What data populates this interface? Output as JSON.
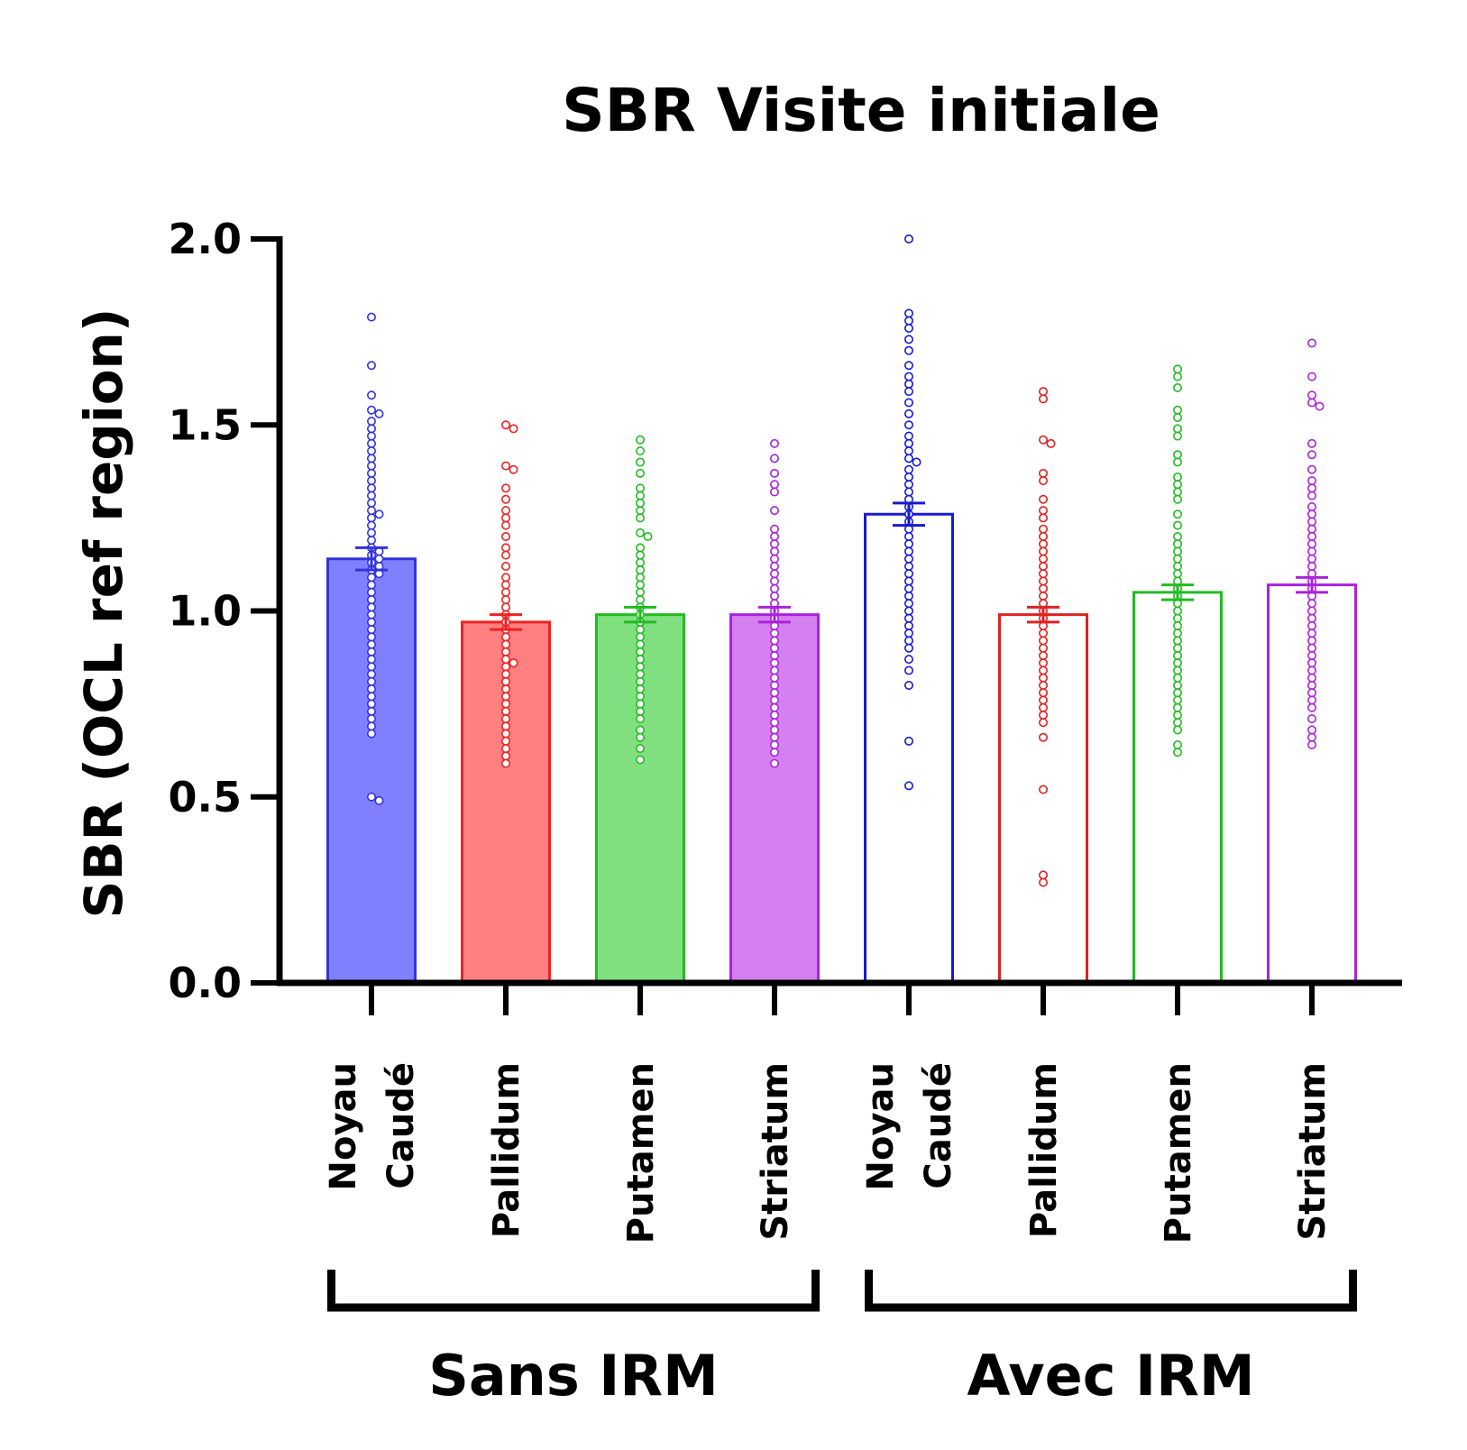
{
  "chart_data": {
    "type": "bar",
    "title": "SBR Visite initiale",
    "ylabel": "SBR (OCL ref region)",
    "ylim": [
      0,
      2
    ],
    "yticks": [
      "0.0",
      "0.5",
      "1.0",
      "1.5",
      "2.0"
    ],
    "categories": [
      {
        "lines": [
          "Noyau",
          "Caudé"
        ],
        "group": "Sans IRM",
        "mean": 1.14,
        "sem": 0.03,
        "color": "#3333dd",
        "fill": "#8080ff",
        "filled": true,
        "points": [
          1.79,
          1.66,
          1.58,
          1.54,
          1.53,
          1.51,
          1.49,
          1.47,
          1.45,
          1.43,
          1.41,
          1.39,
          1.37,
          1.35,
          1.33,
          1.31,
          1.29,
          1.27,
          1.26,
          1.25,
          1.23,
          1.21,
          1.19,
          1.17,
          1.16,
          1.15,
          1.14,
          1.13,
          1.12,
          1.11,
          1.1,
          1.09,
          1.07,
          1.05,
          1.03,
          1.01,
          0.99,
          0.97,
          0.95,
          0.93,
          0.91,
          0.89,
          0.87,
          0.85,
          0.83,
          0.81,
          0.79,
          0.77,
          0.75,
          0.73,
          0.71,
          0.69,
          0.67,
          0.5,
          0.49
        ]
      },
      {
        "lines": [
          "Pallidum"
        ],
        "group": "Sans IRM",
        "mean": 0.97,
        "sem": 0.02,
        "color": "#ee2222",
        "fill": "#ff8080",
        "filled": true,
        "points": [
          1.5,
          1.49,
          1.39,
          1.38,
          1.33,
          1.3,
          1.27,
          1.25,
          1.23,
          1.2,
          1.17,
          1.15,
          1.12,
          1.09,
          1.07,
          1.05,
          1.03,
          1.01,
          0.99,
          0.97,
          0.95,
          0.93,
          0.91,
          0.89,
          0.87,
          0.86,
          0.85,
          0.83,
          0.81,
          0.79,
          0.77,
          0.75,
          0.73,
          0.71,
          0.69,
          0.67,
          0.65,
          0.63,
          0.61,
          0.59
        ]
      },
      {
        "lines": [
          "Putamen"
        ],
        "group": "Sans IRM",
        "mean": 0.99,
        "sem": 0.02,
        "color": "#22bb22",
        "fill": "#80e080",
        "filled": true,
        "points": [
          1.46,
          1.43,
          1.4,
          1.37,
          1.33,
          1.31,
          1.29,
          1.27,
          1.25,
          1.21,
          1.2,
          1.17,
          1.15,
          1.13,
          1.11,
          1.09,
          1.07,
          1.05,
          1.03,
          1.01,
          0.99,
          0.97,
          0.95,
          0.93,
          0.91,
          0.89,
          0.87,
          0.85,
          0.83,
          0.81,
          0.79,
          0.77,
          0.75,
          0.73,
          0.71,
          0.68,
          0.66,
          0.63,
          0.6
        ]
      },
      {
        "lines": [
          "Striatum"
        ],
        "group": "Sans IRM",
        "mean": 0.99,
        "sem": 0.02,
        "color": "#aa22dd",
        "fill": "#d580f0",
        "filled": true,
        "points": [
          1.45,
          1.41,
          1.37,
          1.34,
          1.32,
          1.27,
          1.22,
          1.2,
          1.18,
          1.16,
          1.14,
          1.12,
          1.1,
          1.08,
          1.06,
          1.04,
          1.02,
          1.0,
          0.98,
          0.96,
          0.94,
          0.92,
          0.9,
          0.88,
          0.86,
          0.84,
          0.82,
          0.8,
          0.78,
          0.76,
          0.74,
          0.72,
          0.7,
          0.68,
          0.66,
          0.64,
          0.62,
          0.59
        ]
      },
      {
        "lines": [
          "Noyau",
          "Caudé"
        ],
        "group": "Avec IRM",
        "mean": 1.26,
        "sem": 0.03,
        "color": "#1a1ad0",
        "fill": "#ffffff",
        "filled": false,
        "points": [
          2.0,
          1.8,
          1.78,
          1.76,
          1.73,
          1.7,
          1.66,
          1.63,
          1.61,
          1.59,
          1.56,
          1.53,
          1.5,
          1.47,
          1.45,
          1.43,
          1.41,
          1.4,
          1.38,
          1.36,
          1.34,
          1.32,
          1.3,
          1.28,
          1.26,
          1.24,
          1.22,
          1.2,
          1.18,
          1.16,
          1.14,
          1.12,
          1.1,
          1.08,
          1.06,
          1.04,
          1.02,
          1.0,
          0.98,
          0.96,
          0.94,
          0.92,
          0.9,
          0.87,
          0.84,
          0.8,
          0.65,
          0.53
        ]
      },
      {
        "lines": [
          "Pallidum"
        ],
        "group": "Avec IRM",
        "mean": 0.99,
        "sem": 0.02,
        "color": "#dd2222",
        "fill": "#ffffff",
        "filled": false,
        "points": [
          1.59,
          1.57,
          1.46,
          1.45,
          1.37,
          1.35,
          1.3,
          1.27,
          1.25,
          1.22,
          1.2,
          1.18,
          1.16,
          1.14,
          1.12,
          1.1,
          1.08,
          1.06,
          1.04,
          1.02,
          1.0,
          0.98,
          0.96,
          0.94,
          0.92,
          0.9,
          0.88,
          0.86,
          0.84,
          0.82,
          0.8,
          0.78,
          0.76,
          0.74,
          0.72,
          0.7,
          0.66,
          0.52,
          0.29,
          0.27
        ]
      },
      {
        "lines": [
          "Putamen"
        ],
        "group": "Avec IRM",
        "mean": 1.05,
        "sem": 0.02,
        "color": "#22bb22",
        "fill": "#ffffff",
        "filled": false,
        "points": [
          1.65,
          1.63,
          1.6,
          1.54,
          1.52,
          1.49,
          1.47,
          1.42,
          1.4,
          1.36,
          1.34,
          1.32,
          1.3,
          1.26,
          1.23,
          1.2,
          1.18,
          1.16,
          1.14,
          1.12,
          1.1,
          1.08,
          1.06,
          1.04,
          1.02,
          1.0,
          0.98,
          0.96,
          0.94,
          0.92,
          0.9,
          0.88,
          0.86,
          0.84,
          0.82,
          0.8,
          0.78,
          0.76,
          0.74,
          0.72,
          0.7,
          0.68,
          0.64,
          0.62
        ]
      },
      {
        "lines": [
          "Striatum"
        ],
        "group": "Avec IRM",
        "mean": 1.07,
        "sem": 0.02,
        "color": "#aa22dd",
        "fill": "#ffffff",
        "filled": false,
        "points": [
          1.72,
          1.63,
          1.58,
          1.56,
          1.55,
          1.45,
          1.42,
          1.38,
          1.35,
          1.33,
          1.31,
          1.28,
          1.26,
          1.24,
          1.22,
          1.2,
          1.18,
          1.16,
          1.14,
          1.12,
          1.1,
          1.08,
          1.06,
          1.04,
          1.02,
          1.0,
          0.98,
          0.96,
          0.94,
          0.92,
          0.9,
          0.88,
          0.86,
          0.84,
          0.82,
          0.8,
          0.78,
          0.76,
          0.74,
          0.71,
          0.68,
          0.66,
          0.64
        ]
      }
    ],
    "groups": [
      {
        "label": "Sans IRM",
        "from": 0,
        "to": 3
      },
      {
        "label": "Avec IRM",
        "from": 4,
        "to": 7
      }
    ],
    "grid": false,
    "legend": "none"
  }
}
